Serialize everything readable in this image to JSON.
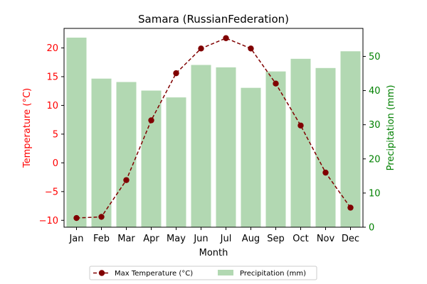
{
  "chart_data": {
    "type": "bar",
    "title": "Samara (RussianFederation)",
    "xlabel": "Month",
    "ylabel_left": "Temperature (°C)",
    "ylabel_right": "Precipitation (mm)",
    "categories": [
      "Jan",
      "Feb",
      "Mar",
      "Apr",
      "May",
      "Jun",
      "Jul",
      "Aug",
      "Sep",
      "Oct",
      "Nov",
      "Dec"
    ],
    "ylim_left": [
      -11.2,
      23.4
    ],
    "ylim_right": [
      0,
      58.2
    ],
    "yticks_left": [
      -10,
      -5,
      0,
      5,
      10,
      15,
      20
    ],
    "yticks_right": [
      0,
      10,
      20,
      30,
      40,
      50
    ],
    "grid": false,
    "legend_position": "bottom-center",
    "series": [
      {
        "name": "Max Temperature (°C)",
        "kind": "line",
        "axis": "left",
        "color": "#800000",
        "linestyle": "dashed",
        "marker": "circle",
        "values": [
          -9.6,
          -9.4,
          -3.0,
          7.4,
          15.6,
          19.9,
          21.7,
          19.9,
          13.8,
          6.5,
          -1.7,
          -7.8
        ]
      },
      {
        "name": "Precipitation (mm)",
        "kind": "bar",
        "axis": "right",
        "color": "#b2d8b2",
        "values": [
          55.5,
          43.5,
          42.5,
          40.0,
          38.0,
          47.5,
          46.8,
          40.8,
          45.6,
          49.3,
          46.6,
          51.5
        ]
      }
    ],
    "colors": {
      "left_axis": "#ff0000",
      "right_axis": "#008000"
    }
  }
}
